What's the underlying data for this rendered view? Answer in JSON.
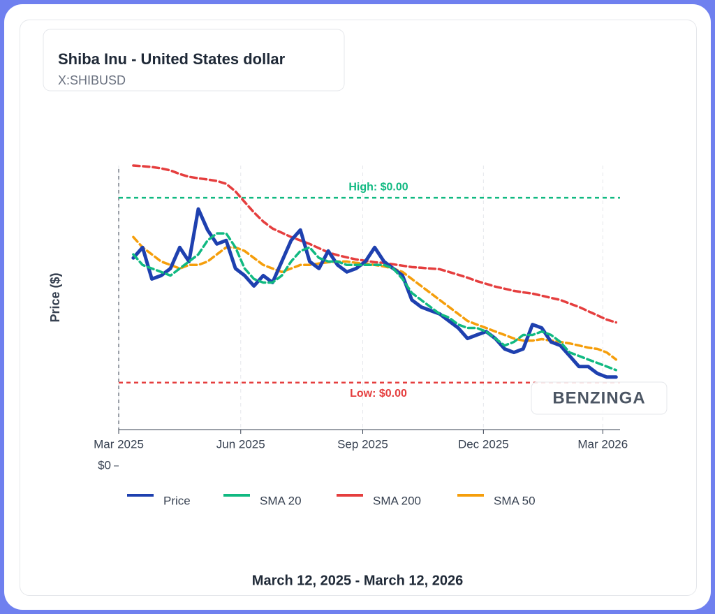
{
  "chart_data": {
    "type": "line",
    "title": "Shiba Inu - United States dollar",
    "subtitle": "X:SHIBUSD",
    "y_label": "Price ($)",
    "date_range": "March 12, 2025 - March 12, 2026",
    "watermark": "BENZINGA",
    "x": [
      "2025-03-12",
      "2025-03-19",
      "2025-03-26",
      "2025-04-02",
      "2025-04-09",
      "2025-04-16",
      "2025-04-23",
      "2025-04-30",
      "2025-05-07",
      "2025-05-14",
      "2025-05-21",
      "2025-05-28",
      "2025-06-04",
      "2025-06-11",
      "2025-06-18",
      "2025-06-25",
      "2025-07-02",
      "2025-07-09",
      "2025-07-16",
      "2025-07-23",
      "2025-07-30",
      "2025-08-06",
      "2025-08-13",
      "2025-08-20",
      "2025-08-27",
      "2025-09-03",
      "2025-09-10",
      "2025-09-17",
      "2025-09-24",
      "2025-10-01",
      "2025-10-08",
      "2025-10-15",
      "2025-10-22",
      "2025-10-29",
      "2025-11-05",
      "2025-11-12",
      "2025-11-19",
      "2025-11-26",
      "2025-12-03",
      "2025-12-10",
      "2025-12-17",
      "2025-12-24",
      "2025-12-31",
      "2026-01-07",
      "2026-01-14",
      "2026-01-21",
      "2026-01-28",
      "2026-02-04",
      "2026-02-11",
      "2026-02-18",
      "2026-02-25",
      "2026-03-04",
      "2026-03-11"
    ],
    "xlim": [
      "2025-03-01",
      "2026-03-14"
    ],
    "xticks": [
      {
        "value": "2025-03-01",
        "label": "Mar 2025"
      },
      {
        "value": "2025-06-01",
        "label": "Jun 2025"
      },
      {
        "value": "2025-09-01",
        "label": "Sep 2025"
      },
      {
        "value": "2025-12-01",
        "label": "Dec 2025"
      },
      {
        "value": "2026-03-01",
        "label": "Mar 2026"
      }
    ],
    "ylim": [
      0,
      1.846e-05
    ],
    "yticks": [
      {
        "value": 0,
        "label": "$0"
      }
    ],
    "grid": true,
    "high": {
      "value": 1.648e-05,
      "label": "High: $0.00",
      "color": "#10b981"
    },
    "low": {
      "value": 5.12e-06,
      "label": "Low: $0.00",
      "color": "#e53e3e"
    },
    "series": [
      {
        "name": "Price",
        "color": "#1e40af",
        "values": [
          1.278e-05,
          1.343e-05,
          1.149e-05,
          1.17e-05,
          1.213e-05,
          1.343e-05,
          1.256e-05,
          1.579e-05,
          1.45e-05,
          1.364e-05,
          1.386e-05,
          1.213e-05,
          1.17e-05,
          1.106e-05,
          1.17e-05,
          1.127e-05,
          1.256e-05,
          1.386e-05,
          1.45e-05,
          1.256e-05,
          1.213e-05,
          1.321e-05,
          1.235e-05,
          1.192e-05,
          1.213e-05,
          1.256e-05,
          1.343e-05,
          1.256e-05,
          1.213e-05,
          1.17e-05,
          1.02e-05,
          9.77e-06,
          9.55e-06,
          9.34e-06,
          8.91e-06,
          8.48e-06,
          7.83e-06,
          8.05e-06,
          8.26e-06,
          7.83e-06,
          7.19e-06,
          6.97e-06,
          7.19e-06,
          8.69e-06,
          8.48e-06,
          7.62e-06,
          7.4e-06,
          6.76e-06,
          6.11e-06,
          6.11e-06,
          5.68e-06,
          5.46e-06,
          5.46e-06
        ]
      },
      {
        "name": "SMA 20",
        "color": "#10b981",
        "values": [
          1.3e-05,
          1.235e-05,
          1.213e-05,
          1.192e-05,
          1.17e-05,
          1.213e-05,
          1.256e-05,
          1.3e-05,
          1.386e-05,
          1.429e-05,
          1.429e-05,
          1.343e-05,
          1.213e-05,
          1.149e-05,
          1.127e-05,
          1.127e-05,
          1.17e-05,
          1.256e-05,
          1.321e-05,
          1.343e-05,
          1.278e-05,
          1.256e-05,
          1.256e-05,
          1.235e-05,
          1.235e-05,
          1.235e-05,
          1.235e-05,
          1.235e-05,
          1.213e-05,
          1.149e-05,
          1.063e-05,
          1.02e-05,
          9.77e-06,
          9.34e-06,
          9.12e-06,
          8.69e-06,
          8.48e-06,
          8.48e-06,
          8.26e-06,
          7.83e-06,
          7.4e-06,
          7.62e-06,
          8.05e-06,
          8.05e-06,
          8.26e-06,
          8.05e-06,
          7.62e-06,
          6.97e-06,
          6.76e-06,
          6.54e-06,
          6.33e-06,
          6.11e-06,
          5.89e-06
        ]
      },
      {
        "name": "SMA 200",
        "color": "#e53e3e",
        "values": [
          1.846e-05,
          1.842e-05,
          1.837e-05,
          1.829e-05,
          1.816e-05,
          1.794e-05,
          1.777e-05,
          1.768e-05,
          1.76e-05,
          1.751e-05,
          1.734e-05,
          1.687e-05,
          1.622e-05,
          1.558e-05,
          1.502e-05,
          1.459e-05,
          1.433e-05,
          1.407e-05,
          1.386e-05,
          1.364e-05,
          1.338e-05,
          1.312e-05,
          1.295e-05,
          1.282e-05,
          1.269e-05,
          1.261e-05,
          1.252e-05,
          1.248e-05,
          1.239e-05,
          1.231e-05,
          1.222e-05,
          1.218e-05,
          1.213e-05,
          1.209e-05,
          1.192e-05,
          1.175e-05,
          1.157e-05,
          1.136e-05,
          1.119e-05,
          1.102e-05,
          1.089e-05,
          1.076e-05,
          1.067e-05,
          1.059e-05,
          1.046e-05,
          1.033e-05,
          1.02e-05,
          9.98e-06,
          9.77e-06,
          9.51e-06,
          9.25e-06,
          8.99e-06,
          8.82e-06
        ]
      },
      {
        "name": "SMA 50",
        "color": "#f59e0b",
        "values": [
          1.407e-05,
          1.343e-05,
          1.3e-05,
          1.256e-05,
          1.235e-05,
          1.213e-05,
          1.235e-05,
          1.235e-05,
          1.256e-05,
          1.3e-05,
          1.343e-05,
          1.343e-05,
          1.321e-05,
          1.278e-05,
          1.235e-05,
          1.213e-05,
          1.192e-05,
          1.213e-05,
          1.235e-05,
          1.235e-05,
          1.244e-05,
          1.252e-05,
          1.256e-05,
          1.256e-05,
          1.248e-05,
          1.244e-05,
          1.235e-05,
          1.226e-05,
          1.213e-05,
          1.192e-05,
          1.149e-05,
          1.106e-05,
          1.063e-05,
          1.02e-05,
          9.77e-06,
          9.34e-06,
          8.91e-06,
          8.69e-06,
          8.48e-06,
          8.26e-06,
          8.05e-06,
          7.83e-06,
          7.7e-06,
          7.7e-06,
          7.79e-06,
          7.7e-06,
          7.62e-06,
          7.53e-06,
          7.4e-06,
          7.27e-06,
          7.19e-06,
          6.97e-06,
          6.54e-06
        ]
      }
    ]
  }
}
